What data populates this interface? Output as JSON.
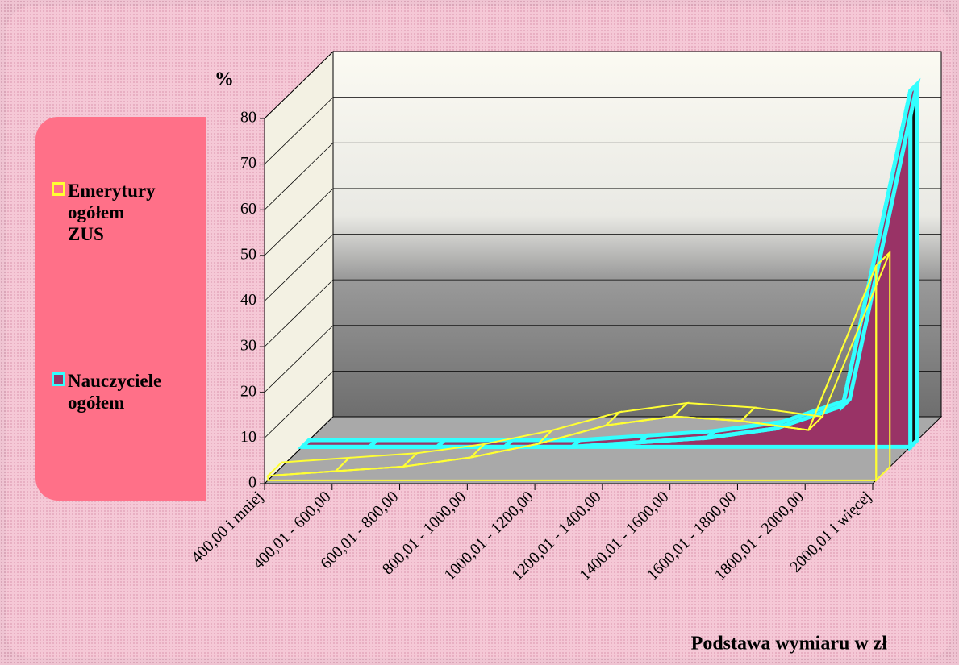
{
  "chart_data": {
    "type": "area3d",
    "y_label": "%",
    "x_label": "Podstawa wymiaru w zł",
    "categories": [
      "400,00 i mniej",
      "400,01 - 600,00",
      "600,01 - 800,00",
      "800,01 - 1000,00",
      "1000,01 - 1200,00",
      "1200,01 - 1400,00",
      "1400,01 - 1600,00",
      "1600,01 - 1800,00",
      "1800,01 - 2000,00",
      "2000,01 i więcej"
    ],
    "series": [
      {
        "name": "Emerytury ogółem ZUS",
        "color": "#ffff33",
        "values": [
          1,
          2,
          3,
          5,
          8,
          12,
          14,
          13,
          11,
          47
        ]
      },
      {
        "name": "Nauczyciele ogółem",
        "color": "#33ffff",
        "fill": "#993366",
        "values": [
          0,
          0,
          0,
          0,
          0,
          1,
          2,
          4,
          9,
          78
        ]
      }
    ],
    "ylim": [
      0,
      80
    ],
    "yticks": [
      0,
      10,
      20,
      30,
      40,
      50,
      60,
      70,
      80
    ],
    "grid": true
  }
}
